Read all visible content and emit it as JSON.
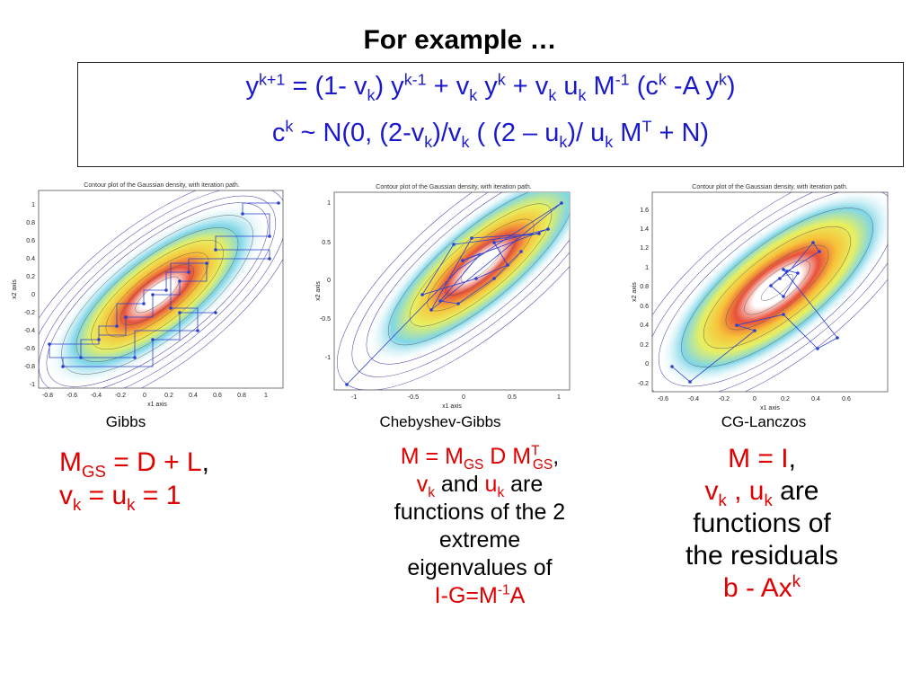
{
  "slide": {
    "title": "For example …",
    "formula": {
      "line1": {
        "y": "y",
        "k_plus_1": "k+1",
        "eq": " = (1- v",
        "k1": "k",
        "p1": ") y",
        "k_minus_1": "k-1",
        "p2": " + v",
        "k2": "k",
        "p3": " y",
        "k3": "k",
        "p4": "  + v",
        "k4": "k",
        "p5": " u",
        "k5": "k",
        "p6": " M",
        "minus1": "-1",
        "p7": " (c",
        "k6": "k",
        "p8": " -A y",
        "k7": "k",
        "p9": ")"
      },
      "line2": {
        "c": "c",
        "k": "k",
        "p1": " ~ N(0, (2-v",
        "k1": "k",
        "p2": ")/v",
        "k2": "k",
        "p3": " ( (2 – u",
        "k3": "k",
        "p4": ")/ u",
        "k4": "k",
        "p5": " M",
        "T": "T",
        "p6": " + N)"
      }
    },
    "plots": [
      {
        "label": "Gibbs",
        "plot_title": "Contour plot of the Gaussian density, with iteration path.",
        "xlabel": "x1 axis",
        "ylabel": "x2 axis",
        "xticks": [
          "-0.8",
          "-0.6",
          "-0.4",
          "-0.2",
          "0",
          "0.2",
          "0.4",
          "0.6",
          "0.8",
          "1"
        ],
        "yticks": [
          "1",
          "0.8",
          "0.6",
          "0.4",
          "0.2",
          "0",
          "-0.2",
          "-0.4",
          "-0.6",
          "-0.8",
          "-1"
        ]
      },
      {
        "label": "Chebyshev-Gibbs",
        "plot_title": "Contour plot of the Gaussian density, with iteration path.",
        "xlabel": "x1 axis",
        "ylabel": "x2 axis",
        "xticks": [
          "-1",
          "-0.5",
          "0",
          "0.5",
          "1"
        ],
        "yticks": [
          "1",
          "0.5",
          "0",
          "-0.5",
          "-1"
        ]
      },
      {
        "label": "CG-Lanczos",
        "plot_title": "Contour plot of the Gaussian density, with iteration path.",
        "xlabel": "x1 axis",
        "ylabel": "x2 axis",
        "xticks": [
          "-0.6",
          "-0.4",
          "-0.2",
          "0",
          "0.2",
          "0.4",
          "0.6"
        ],
        "yticks": [
          "1.6",
          "1.4",
          "1.2",
          "1",
          "0.8",
          "0.6",
          "0.4",
          "0.2",
          "0",
          "-0.2"
        ]
      }
    ],
    "desc_gibbs": {
      "M": "M",
      "GS": "GS",
      "p1": " = D + L",
      "comma": ",",
      "v": "v",
      "k1": "k",
      "p2": " = u",
      "k2": "k",
      "p3": " = 1"
    },
    "desc_cheb": {
      "p1": "M = M",
      "GS1": "GS",
      "p2": " D M",
      "T": "T",
      "GS2": "GS",
      "comma": ",",
      "v": "v",
      "k1": "k",
      "and": " and ",
      "u": "u",
      "k2": "k",
      "are": " are",
      "l3": "functions of the 2",
      "l4": "extreme",
      "l5": "eigenvalues of",
      "l6a": "I-G=M",
      "minus1": "-1",
      "l6b": "A"
    },
    "desc_cg": {
      "p1": "M = I",
      "comma": ",",
      "v": "v",
      "k1": "k",
      "sep": " , u",
      "k2": "k",
      "are": " are",
      "l3": "functions of",
      "l4": "the residuals",
      "l5": "b - Ax",
      "k3": "k"
    },
    "colors": {
      "formula": "#1a1acc",
      "highlight": "#e00000",
      "path": "#2a3fd4"
    }
  }
}
